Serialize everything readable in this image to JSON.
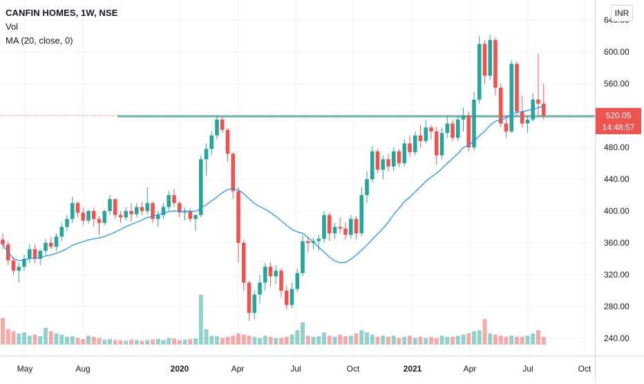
{
  "legend": {
    "title": "CANFIN HOMES, 1W, NSE",
    "vol_label": "Vol",
    "ma_label": "MA (20, close, 0)"
  },
  "currency_button": "INR",
  "price_tag": {
    "price": "520.05",
    "countdown": "14:48:57",
    "color": "#ef5350"
  },
  "colors": {
    "up": "#26a69a",
    "down": "#ef5350",
    "ma": "#2196f3",
    "grid": "#f0f3fa",
    "axis_text": "#131722"
  },
  "chart_data": {
    "type": "candlestick",
    "symbol": "CANFIN HOMES",
    "interval": "1W",
    "exchange": "NSE",
    "y_axis": {
      "ticks": [
        240,
        280,
        320,
        360,
        400,
        440,
        480,
        520,
        560,
        600,
        640
      ],
      "tick_labels": [
        "240.00",
        "280.00",
        "320.00",
        "360.00",
        "400.00",
        "440.00",
        "480.00",
        "520.00",
        "560.00",
        "600.00",
        "640.00"
      ],
      "ylim": [
        216,
        660
      ]
    },
    "x_axis": {
      "labels": [
        "May",
        "Aug",
        "2020",
        "Apr",
        "Jul",
        "Oct",
        "2021",
        "Apr",
        "Jul",
        "Oct"
      ],
      "bold_labels": [
        "2020",
        "2021"
      ]
    },
    "resistance_level": 519,
    "last_price": 520.05,
    "candles": [
      [
        364,
        372,
        352,
        358
      ],
      [
        358,
        362,
        332,
        338
      ],
      [
        338,
        342,
        320,
        325
      ],
      [
        325,
        335,
        310,
        330
      ],
      [
        330,
        345,
        325,
        340
      ],
      [
        340,
        358,
        335,
        352
      ],
      [
        352,
        358,
        335,
        340
      ],
      [
        340,
        352,
        332,
        350
      ],
      [
        350,
        365,
        345,
        360
      ],
      [
        360,
        368,
        352,
        355
      ],
      [
        355,
        372,
        350,
        368
      ],
      [
        368,
        385,
        362,
        380
      ],
      [
        380,
        395,
        375,
        390
      ],
      [
        390,
        418,
        385,
        410
      ],
      [
        410,
        412,
        392,
        398
      ],
      [
        398,
        405,
        382,
        388
      ],
      [
        388,
        402,
        384,
        400
      ],
      [
        400,
        404,
        380,
        390
      ],
      [
        390,
        394,
        370,
        385
      ],
      [
        385,
        402,
        382,
        400
      ],
      [
        400,
        420,
        395,
        415
      ],
      [
        415,
        416,
        390,
        395
      ],
      [
        395,
        400,
        385,
        392
      ],
      [
        392,
        405,
        388,
        400
      ],
      [
        400,
        410,
        386,
        396
      ],
      [
        396,
        410,
        392,
        405
      ],
      [
        405,
        412,
        395,
        400
      ],
      [
        400,
        430,
        396,
        410
      ],
      [
        410,
        412,
        385,
        390
      ],
      [
        390,
        400,
        380,
        395
      ],
      [
        395,
        410,
        390,
        405
      ],
      [
        405,
        425,
        400,
        420
      ],
      [
        420,
        428,
        405,
        410
      ],
      [
        410,
        412,
        392,
        398
      ],
      [
        398,
        404,
        388,
        400
      ],
      [
        400,
        403,
        386,
        390
      ],
      [
        390,
        395,
        375,
        395
      ],
      [
        395,
        470,
        392,
        465
      ],
      [
        465,
        485,
        445,
        478
      ],
      [
        478,
        500,
        470,
        495
      ],
      [
        495,
        520,
        490,
        515
      ],
      [
        515,
        519,
        498,
        502
      ],
      [
        502,
        504,
        462,
        472
      ],
      [
        472,
        474,
        415,
        425
      ],
      [
        425,
        430,
        335,
        360
      ],
      [
        360,
        364,
        300,
        310
      ],
      [
        310,
        312,
        262,
        272
      ],
      [
        272,
        300,
        264,
        295
      ],
      [
        295,
        320,
        284,
        310
      ],
      [
        310,
        335,
        300,
        330
      ],
      [
        330,
        336,
        305,
        318
      ],
      [
        318,
        332,
        308,
        325
      ],
      [
        325,
        328,
        292,
        300
      ],
      [
        300,
        306,
        276,
        282
      ],
      [
        282,
        310,
        278,
        302
      ],
      [
        302,
        328,
        298,
        322
      ],
      [
        322,
        370,
        318,
        362
      ],
      [
        362,
        368,
        348,
        360
      ],
      [
        360,
        366,
        352,
        362
      ],
      [
        362,
        370,
        350,
        365
      ],
      [
        365,
        400,
        360,
        395
      ],
      [
        395,
        398,
        362,
        372
      ],
      [
        372,
        385,
        365,
        380
      ],
      [
        380,
        392,
        372,
        378
      ],
      [
        378,
        386,
        364,
        370
      ],
      [
        370,
        395,
        365,
        390
      ],
      [
        390,
        394,
        365,
        372
      ],
      [
        372,
        430,
        368,
        420
      ],
      [
        420,
        450,
        410,
        440
      ],
      [
        440,
        482,
        436,
        475
      ],
      [
        475,
        478,
        448,
        452
      ],
      [
        452,
        470,
        440,
        465
      ],
      [
        465,
        472,
        450,
        456
      ],
      [
        456,
        480,
        450,
        475
      ],
      [
        475,
        478,
        455,
        460
      ],
      [
        460,
        490,
        456,
        485
      ],
      [
        485,
        495,
        468,
        474
      ],
      [
        474,
        500,
        470,
        495
      ],
      [
        495,
        508,
        480,
        488
      ],
      [
        488,
        515,
        485,
        505
      ],
      [
        505,
        508,
        490,
        500
      ],
      [
        500,
        506,
        458,
        470
      ],
      [
        470,
        505,
        465,
        498
      ],
      [
        498,
        520,
        492,
        510
      ],
      [
        510,
        515,
        488,
        492
      ],
      [
        492,
        520,
        488,
        515
      ],
      [
        515,
        530,
        500,
        520
      ],
      [
        520,
        525,
        475,
        480
      ],
      [
        480,
        550,
        476,
        540
      ],
      [
        540,
        620,
        535,
        610
      ],
      [
        610,
        615,
        560,
        570
      ],
      [
        570,
        622,
        565,
        615
      ],
      [
        615,
        618,
        545,
        555
      ],
      [
        555,
        560,
        505,
        510
      ],
      [
        510,
        520,
        492,
        500
      ],
      [
        500,
        590,
        498,
        585
      ],
      [
        585,
        588,
        520,
        525
      ],
      [
        525,
        545,
        505,
        510
      ],
      [
        510,
        520,
        498,
        515
      ],
      [
        515,
        548,
        512,
        540
      ],
      [
        540,
        598,
        520,
        535
      ],
      [
        535,
        560,
        515,
        520
      ]
    ],
    "volume": [
      48,
      28,
      24,
      20,
      22,
      16,
      18,
      15,
      30,
      24,
      20,
      18,
      14,
      15,
      12,
      10,
      16,
      14,
      12,
      9,
      10,
      8,
      8,
      7,
      9,
      8,
      7,
      8,
      9,
      10,
      8,
      12,
      11,
      8,
      9,
      10,
      11,
      90,
      28,
      16,
      15,
      12,
      14,
      16,
      20,
      18,
      16,
      14,
      12,
      16,
      14,
      12,
      12,
      14,
      18,
      26,
      40,
      16,
      14,
      15,
      22,
      16,
      14,
      18,
      15,
      16,
      20,
      26,
      22,
      18,
      14,
      16,
      14,
      16,
      12,
      14,
      16,
      12,
      14,
      12,
      14,
      12,
      16,
      14,
      14,
      16,
      18,
      20,
      24,
      26,
      46,
      20,
      18,
      16,
      14,
      16,
      14,
      14,
      16,
      20,
      26,
      14
    ]
  }
}
